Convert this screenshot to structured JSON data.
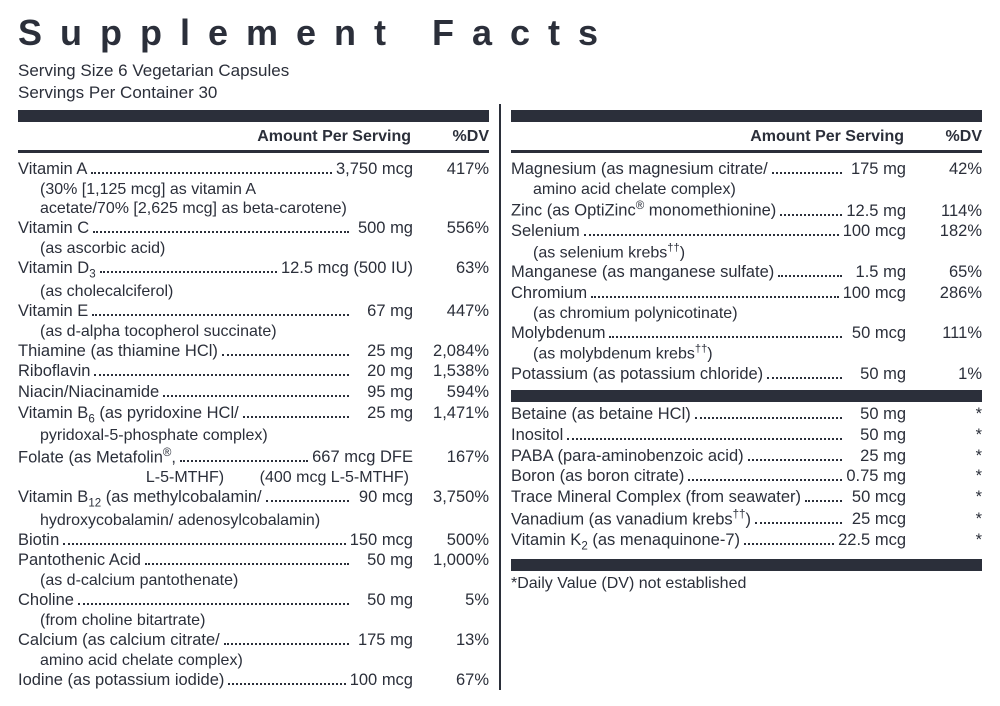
{
  "title": "Supplement Facts",
  "serving_size": "Serving Size 6 Vegetarian Capsules",
  "servings_per_container": "Servings Per Container 30",
  "header_amount": "Amount Per Serving",
  "header_dv": "%DV",
  "footnote": "*Daily Value (DV) not established",
  "left": [
    {
      "name": "Vitamin A",
      "amount": "3,750 mcg",
      "dv": "417%",
      "subs": [
        "(30% [1,125 mcg] as vitamin A",
        "acetate/70% [2,625 mcg] as beta-carotene)"
      ],
      "sub_indent": false
    },
    {
      "name": "Vitamin C",
      "amount": "500 mg",
      "dv": "556%",
      "subs": [
        "(as ascorbic acid)"
      ]
    },
    {
      "name": "Vitamin D<sub>3</sub>",
      "amount": "12.5 mcg (500 IU)",
      "dv": "63%",
      "subs": [
        "(as cholecalciferol)"
      ]
    },
    {
      "name": "Vitamin E",
      "amount": "67 mg",
      "dv": "447%",
      "subs": [
        "(as d-alpha tocopherol succinate)"
      ]
    },
    {
      "name": "Thiamine (as thiamine HCl)",
      "amount": "25 mg",
      "dv": "2,084%"
    },
    {
      "name": "Riboflavin",
      "amount": "20 mg",
      "dv": "1,538%"
    },
    {
      "name": "Niacin/Niacinamide",
      "amount": "95 mg",
      "dv": "594%"
    },
    {
      "name": "Vitamin B<sub>6</sub> (as pyridoxine HCl/",
      "amount": "25 mg",
      "dv": "1,471%",
      "subs": [
        "pyridoxal-5-phosphate complex)"
      ]
    },
    {
      "name": "Folate (as Metafolin<sup>®</sup>,",
      "amount": "667 mcg DFE",
      "dv": "167%",
      "subs_right": [
        "L-5-MTHF)        (400 mcg L-5-MTHF)"
      ]
    },
    {
      "name": "Vitamin B<sub>12</sub> (as methylcobalamin/",
      "amount": "90 mcg",
      "dv": "3,750%",
      "subs": [
        "hydroxycobalamin/ adenosylcobalamin)"
      ]
    },
    {
      "name": "Biotin",
      "amount": "150 mcg",
      "dv": "500%"
    },
    {
      "name": "Pantothenic Acid",
      "amount": "50 mg",
      "dv": "1,000%",
      "subs": [
        "(as d-calcium pantothenate)"
      ]
    },
    {
      "name": "Choline",
      "amount": "50 mg",
      "dv": "5%",
      "subs": [
        "(from choline bitartrate)"
      ]
    },
    {
      "name": "Calcium (as calcium citrate/",
      "amount": "175 mg",
      "dv": "13%",
      "subs": [
        "amino acid chelate complex)"
      ]
    },
    {
      "name": "Iodine (as potassium iodide)",
      "amount": "100 mcg",
      "dv": "67%"
    }
  ],
  "right_top": [
    {
      "name": "Magnesium (as magnesium citrate/",
      "amount": "175 mg",
      "dv": "42%",
      "subs": [
        "amino acid chelate complex)"
      ]
    },
    {
      "name": "Zinc (as OptiZinc<sup>®</sup> monomethionine)",
      "amount": "12.5 mg",
      "dv": "114%"
    },
    {
      "name": "Selenium",
      "amount": "100 mcg",
      "dv": "182%",
      "subs": [
        "(as selenium krebs<sup>††</sup>)"
      ]
    },
    {
      "name": "Manganese (as manganese sulfate)",
      "amount": "1.5 mg",
      "dv": "65%"
    },
    {
      "name": "Chromium",
      "amount": "100 mcg",
      "dv": "286%",
      "subs": [
        "(as chromium polynicotinate)"
      ]
    },
    {
      "name": "Molybdenum",
      "amount": "50 mcg",
      "dv": "111%",
      "subs": [
        "(as molybdenum krebs<sup>††</sup>)"
      ]
    },
    {
      "name": "Potassium (as potassium chloride)",
      "amount": "50 mg",
      "dv": "1%"
    }
  ],
  "right_bottom": [
    {
      "name": "Betaine (as betaine HCl)",
      "amount": "50 mg",
      "dv": "*"
    },
    {
      "name": "Inositol",
      "amount": "50 mg",
      "dv": "*"
    },
    {
      "name": "PABA (para-aminobenzoic acid)",
      "amount": "25 mg",
      "dv": "*"
    },
    {
      "name": "Boron (as boron citrate)",
      "amount": "0.75 mg",
      "dv": "*"
    },
    {
      "name": "Trace Mineral Complex (from seawater)",
      "amount": "50 mcg",
      "dv": "*"
    },
    {
      "name": "Vanadium (as vanadium krebs<sup>††</sup>)",
      "amount": "25 mcg",
      "dv": "*"
    },
    {
      "name": "Vitamin K<sub>2</sub> (as menaquinone-7)",
      "amount": "22.5 mcg",
      "dv": "*"
    }
  ],
  "colors": {
    "text": "#2b2f3a",
    "bar": "#2b2f3a",
    "bg": "#ffffff"
  }
}
